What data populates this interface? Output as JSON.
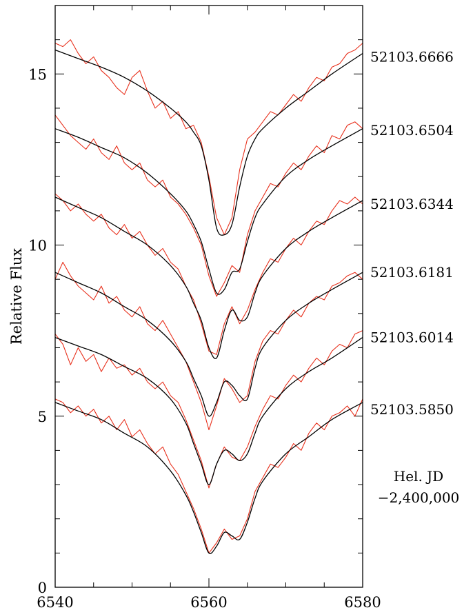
{
  "chart_data": {
    "type": "line",
    "title": "",
    "xlabel": "",
    "ylabel": "Relative Flux",
    "xlim": [
      6540,
      6580
    ],
    "ylim": [
      0,
      17
    ],
    "x_ticks": [
      6540,
      6560,
      6580
    ],
    "y_ticks": [
      0,
      5,
      10,
      15
    ],
    "grid": false,
    "legend_text": [
      "Hel. JD",
      "−2,400,000"
    ],
    "colors": {
      "observed": "#e8301c",
      "model": "#000000",
      "frame": "#000000"
    },
    "series": [
      {
        "label": "52103.6666",
        "label_y": 15.5,
        "model": {
          "x": [
            6540,
            6543,
            6546,
            6549,
            6552,
            6555,
            6557,
            6558,
            6559,
            6560,
            6561,
            6562,
            6563,
            6564,
            6565,
            6566,
            6567,
            6570,
            6573,
            6576,
            6580
          ],
          "y": [
            15.7,
            15.45,
            15.2,
            14.9,
            14.5,
            14.0,
            13.6,
            13.3,
            12.9,
            11.9,
            10.5,
            10.3,
            10.6,
            11.7,
            12.6,
            13.1,
            13.4,
            14.0,
            14.5,
            15.0,
            15.6
          ]
        },
        "observed": {
          "x": [
            6540,
            6541,
            6542,
            6543,
            6544,
            6545,
            6546,
            6547,
            6548,
            6549,
            6550,
            6551,
            6552,
            6553,
            6554,
            6555,
            6556,
            6557,
            6558,
            6559,
            6560,
            6561,
            6562,
            6563,
            6564,
            6565,
            6566,
            6567,
            6568,
            6569,
            6570,
            6571,
            6572,
            6573,
            6574,
            6575,
            6576,
            6577,
            6578,
            6579,
            6580
          ],
          "y": [
            15.9,
            15.8,
            16.0,
            15.6,
            15.3,
            15.5,
            15.1,
            14.9,
            14.6,
            14.4,
            14.9,
            15.1,
            14.5,
            14.0,
            14.2,
            13.7,
            13.9,
            13.4,
            13.5,
            13.0,
            12.0,
            10.8,
            10.3,
            10.8,
            12.2,
            13.1,
            13.3,
            13.6,
            13.9,
            13.8,
            14.1,
            14.4,
            14.2,
            14.6,
            14.9,
            14.8,
            15.2,
            15.3,
            15.6,
            15.7,
            15.9
          ]
        }
      },
      {
        "label": "52103.6504",
        "label_y": 13.35,
        "model": {
          "x": [
            6540,
            6543,
            6546,
            6549,
            6552,
            6555,
            6557,
            6558,
            6559,
            6560,
            6561,
            6562,
            6563,
            6564,
            6565,
            6566,
            6567,
            6570,
            6573,
            6576,
            6580
          ],
          "y": [
            13.4,
            13.15,
            12.85,
            12.55,
            12.1,
            11.5,
            11.0,
            10.6,
            10.1,
            9.3,
            8.6,
            8.7,
            9.2,
            9.3,
            10.1,
            10.8,
            11.2,
            12.0,
            12.5,
            12.9,
            13.4
          ]
        },
        "observed": {
          "x": [
            6540,
            6541,
            6542,
            6543,
            6544,
            6545,
            6546,
            6547,
            6548,
            6549,
            6550,
            6551,
            6552,
            6553,
            6554,
            6555,
            6556,
            6557,
            6558,
            6559,
            6560,
            6561,
            6562,
            6563,
            6564,
            6565,
            6566,
            6567,
            6568,
            6569,
            6570,
            6571,
            6572,
            6573,
            6574,
            6575,
            6576,
            6577,
            6578,
            6579,
            6580
          ],
          "y": [
            13.8,
            13.5,
            13.2,
            13.0,
            12.8,
            13.1,
            12.7,
            12.5,
            12.9,
            12.4,
            12.2,
            12.4,
            11.9,
            11.7,
            11.9,
            11.4,
            11.2,
            10.9,
            10.5,
            10.0,
            9.1,
            8.5,
            8.9,
            9.4,
            9.2,
            10.3,
            11.0,
            11.4,
            11.8,
            11.7,
            12.1,
            12.4,
            12.2,
            12.6,
            12.9,
            12.7,
            13.2,
            13.1,
            13.5,
            13.6,
            13.4
          ]
        }
      },
      {
        "label": "52103.6344",
        "label_y": 11.2,
        "model": {
          "x": [
            6540,
            6543,
            6546,
            6549,
            6552,
            6555,
            6557,
            6558,
            6559,
            6560,
            6561,
            6562,
            6563,
            6564,
            6565,
            6566,
            6567,
            6570,
            6573,
            6576,
            6580
          ],
          "y": [
            11.4,
            11.1,
            10.8,
            10.4,
            10.0,
            9.4,
            8.8,
            8.3,
            7.8,
            7.0,
            6.7,
            7.5,
            8.1,
            7.8,
            7.9,
            8.6,
            9.1,
            9.9,
            10.4,
            10.8,
            11.3
          ]
        },
        "observed": {
          "x": [
            6540,
            6541,
            6542,
            6543,
            6544,
            6545,
            6546,
            6547,
            6548,
            6549,
            6550,
            6551,
            6552,
            6553,
            6554,
            6555,
            6556,
            6557,
            6558,
            6559,
            6560,
            6561,
            6562,
            6563,
            6564,
            6565,
            6566,
            6567,
            6568,
            6569,
            6570,
            6571,
            6572,
            6573,
            6574,
            6575,
            6576,
            6577,
            6578,
            6579,
            6580
          ],
          "y": [
            11.5,
            11.3,
            11.0,
            11.2,
            10.9,
            10.7,
            10.9,
            10.5,
            10.3,
            10.6,
            10.2,
            10.4,
            10.0,
            9.7,
            9.9,
            9.5,
            9.3,
            8.8,
            8.4,
            7.7,
            6.9,
            6.8,
            7.7,
            8.2,
            7.7,
            8.1,
            8.7,
            9.2,
            9.6,
            9.5,
            9.9,
            10.2,
            10.0,
            10.4,
            10.7,
            10.6,
            11.0,
            11.3,
            11.2,
            11.4,
            11.2
          ]
        }
      },
      {
        "label": "52103.6181",
        "label_y": 9.2,
        "model": {
          "x": [
            6540,
            6543,
            6546,
            6549,
            6552,
            6555,
            6557,
            6558,
            6559,
            6560,
            6561,
            6562,
            6563,
            6564,
            6565,
            6566,
            6567,
            6570,
            6573,
            6576,
            6580
          ],
          "y": [
            9.2,
            8.9,
            8.6,
            8.2,
            7.8,
            7.2,
            6.6,
            6.1,
            5.6,
            5.0,
            5.4,
            6.0,
            5.9,
            5.6,
            5.5,
            6.4,
            7.0,
            7.8,
            8.3,
            8.7,
            9.2
          ]
        },
        "observed": {
          "x": [
            6540,
            6541,
            6542,
            6543,
            6544,
            6545,
            6546,
            6547,
            6548,
            6549,
            6550,
            6551,
            6552,
            6553,
            6554,
            6555,
            6556,
            6557,
            6558,
            6559,
            6560,
            6561,
            6562,
            6563,
            6564,
            6565,
            6566,
            6567,
            6568,
            6569,
            6570,
            6571,
            6572,
            6573,
            6574,
            6575,
            6576,
            6577,
            6578,
            6579,
            6580
          ],
          "y": [
            9.0,
            9.5,
            9.1,
            8.8,
            8.6,
            8.4,
            8.8,
            8.3,
            8.5,
            8.1,
            7.9,
            8.2,
            7.7,
            7.5,
            7.8,
            7.4,
            7.0,
            6.6,
            6.0,
            5.4,
            4.6,
            5.3,
            6.1,
            5.8,
            5.4,
            5.6,
            6.6,
            7.2,
            7.5,
            7.4,
            7.8,
            8.1,
            7.9,
            8.3,
            8.5,
            8.4,
            8.8,
            8.9,
            9.1,
            9.2,
            9.0
          ]
        }
      },
      {
        "label": "52103.6014",
        "label_y": 7.3,
        "model": {
          "x": [
            6540,
            6543,
            6546,
            6549,
            6552,
            6555,
            6557,
            6558,
            6559,
            6560,
            6561,
            6562,
            6563,
            6564,
            6565,
            6566,
            6567,
            6570,
            6573,
            6576,
            6580
          ],
          "y": [
            7.3,
            7.05,
            6.8,
            6.45,
            6.1,
            5.5,
            4.8,
            4.2,
            3.6,
            3.0,
            3.6,
            4.0,
            3.9,
            3.7,
            3.9,
            4.5,
            5.0,
            5.8,
            6.3,
            6.7,
            7.3
          ]
        },
        "observed": {
          "x": [
            6540,
            6541,
            6542,
            6543,
            6544,
            6545,
            6546,
            6547,
            6548,
            6549,
            6550,
            6551,
            6552,
            6553,
            6554,
            6555,
            6556,
            6557,
            6558,
            6559,
            6560,
            6561,
            6562,
            6563,
            6564,
            6565,
            6566,
            6567,
            6568,
            6569,
            6570,
            6571,
            6572,
            6573,
            6574,
            6575,
            6576,
            6577,
            6578,
            6579,
            6580
          ],
          "y": [
            7.4,
            7.1,
            6.5,
            7.0,
            6.6,
            6.8,
            6.3,
            6.7,
            6.4,
            6.5,
            6.2,
            6.4,
            6.0,
            5.8,
            6.0,
            5.6,
            5.4,
            4.9,
            4.3,
            3.7,
            2.9,
            3.6,
            4.1,
            3.8,
            3.7,
            4.1,
            4.7,
            5.2,
            5.6,
            5.5,
            5.9,
            6.2,
            6.0,
            6.4,
            6.7,
            6.5,
            6.9,
            7.1,
            7.0,
            7.4,
            7.5
          ]
        }
      },
      {
        "label": "52103.5850",
        "label_y": 5.2,
        "model": {
          "x": [
            6540,
            6543,
            6546,
            6549,
            6552,
            6555,
            6557,
            6558,
            6559,
            6560,
            6561,
            6562,
            6563,
            6564,
            6565,
            6566,
            6567,
            6570,
            6573,
            6576,
            6580
          ],
          "y": [
            5.4,
            5.15,
            4.9,
            4.5,
            4.1,
            3.4,
            2.7,
            2.2,
            1.6,
            1.0,
            1.2,
            1.6,
            1.5,
            1.4,
            1.9,
            2.6,
            3.1,
            3.9,
            4.4,
            4.9,
            5.4
          ]
        },
        "observed": {
          "x": [
            6540,
            6541,
            6542,
            6543,
            6544,
            6545,
            6546,
            6547,
            6548,
            6549,
            6550,
            6551,
            6552,
            6553,
            6554,
            6555,
            6556,
            6557,
            6558,
            6559,
            6560,
            6561,
            6562,
            6563,
            6564,
            6565,
            6566,
            6567,
            6568,
            6569,
            6570,
            6571,
            6572,
            6573,
            6574,
            6575,
            6576,
            6577,
            6578,
            6579,
            6580
          ],
          "y": [
            5.5,
            5.4,
            5.1,
            5.3,
            5.0,
            5.2,
            4.8,
            5.0,
            4.6,
            4.9,
            4.4,
            4.6,
            4.2,
            3.9,
            4.1,
            3.6,
            3.3,
            2.8,
            2.3,
            1.7,
            1.0,
            1.3,
            1.7,
            1.4,
            1.5,
            2.0,
            2.8,
            3.2,
            3.6,
            3.5,
            3.8,
            4.2,
            4.0,
            4.5,
            4.8,
            4.6,
            5.0,
            5.1,
            5.3,
            5.0,
            5.5
          ]
        }
      }
    ]
  }
}
